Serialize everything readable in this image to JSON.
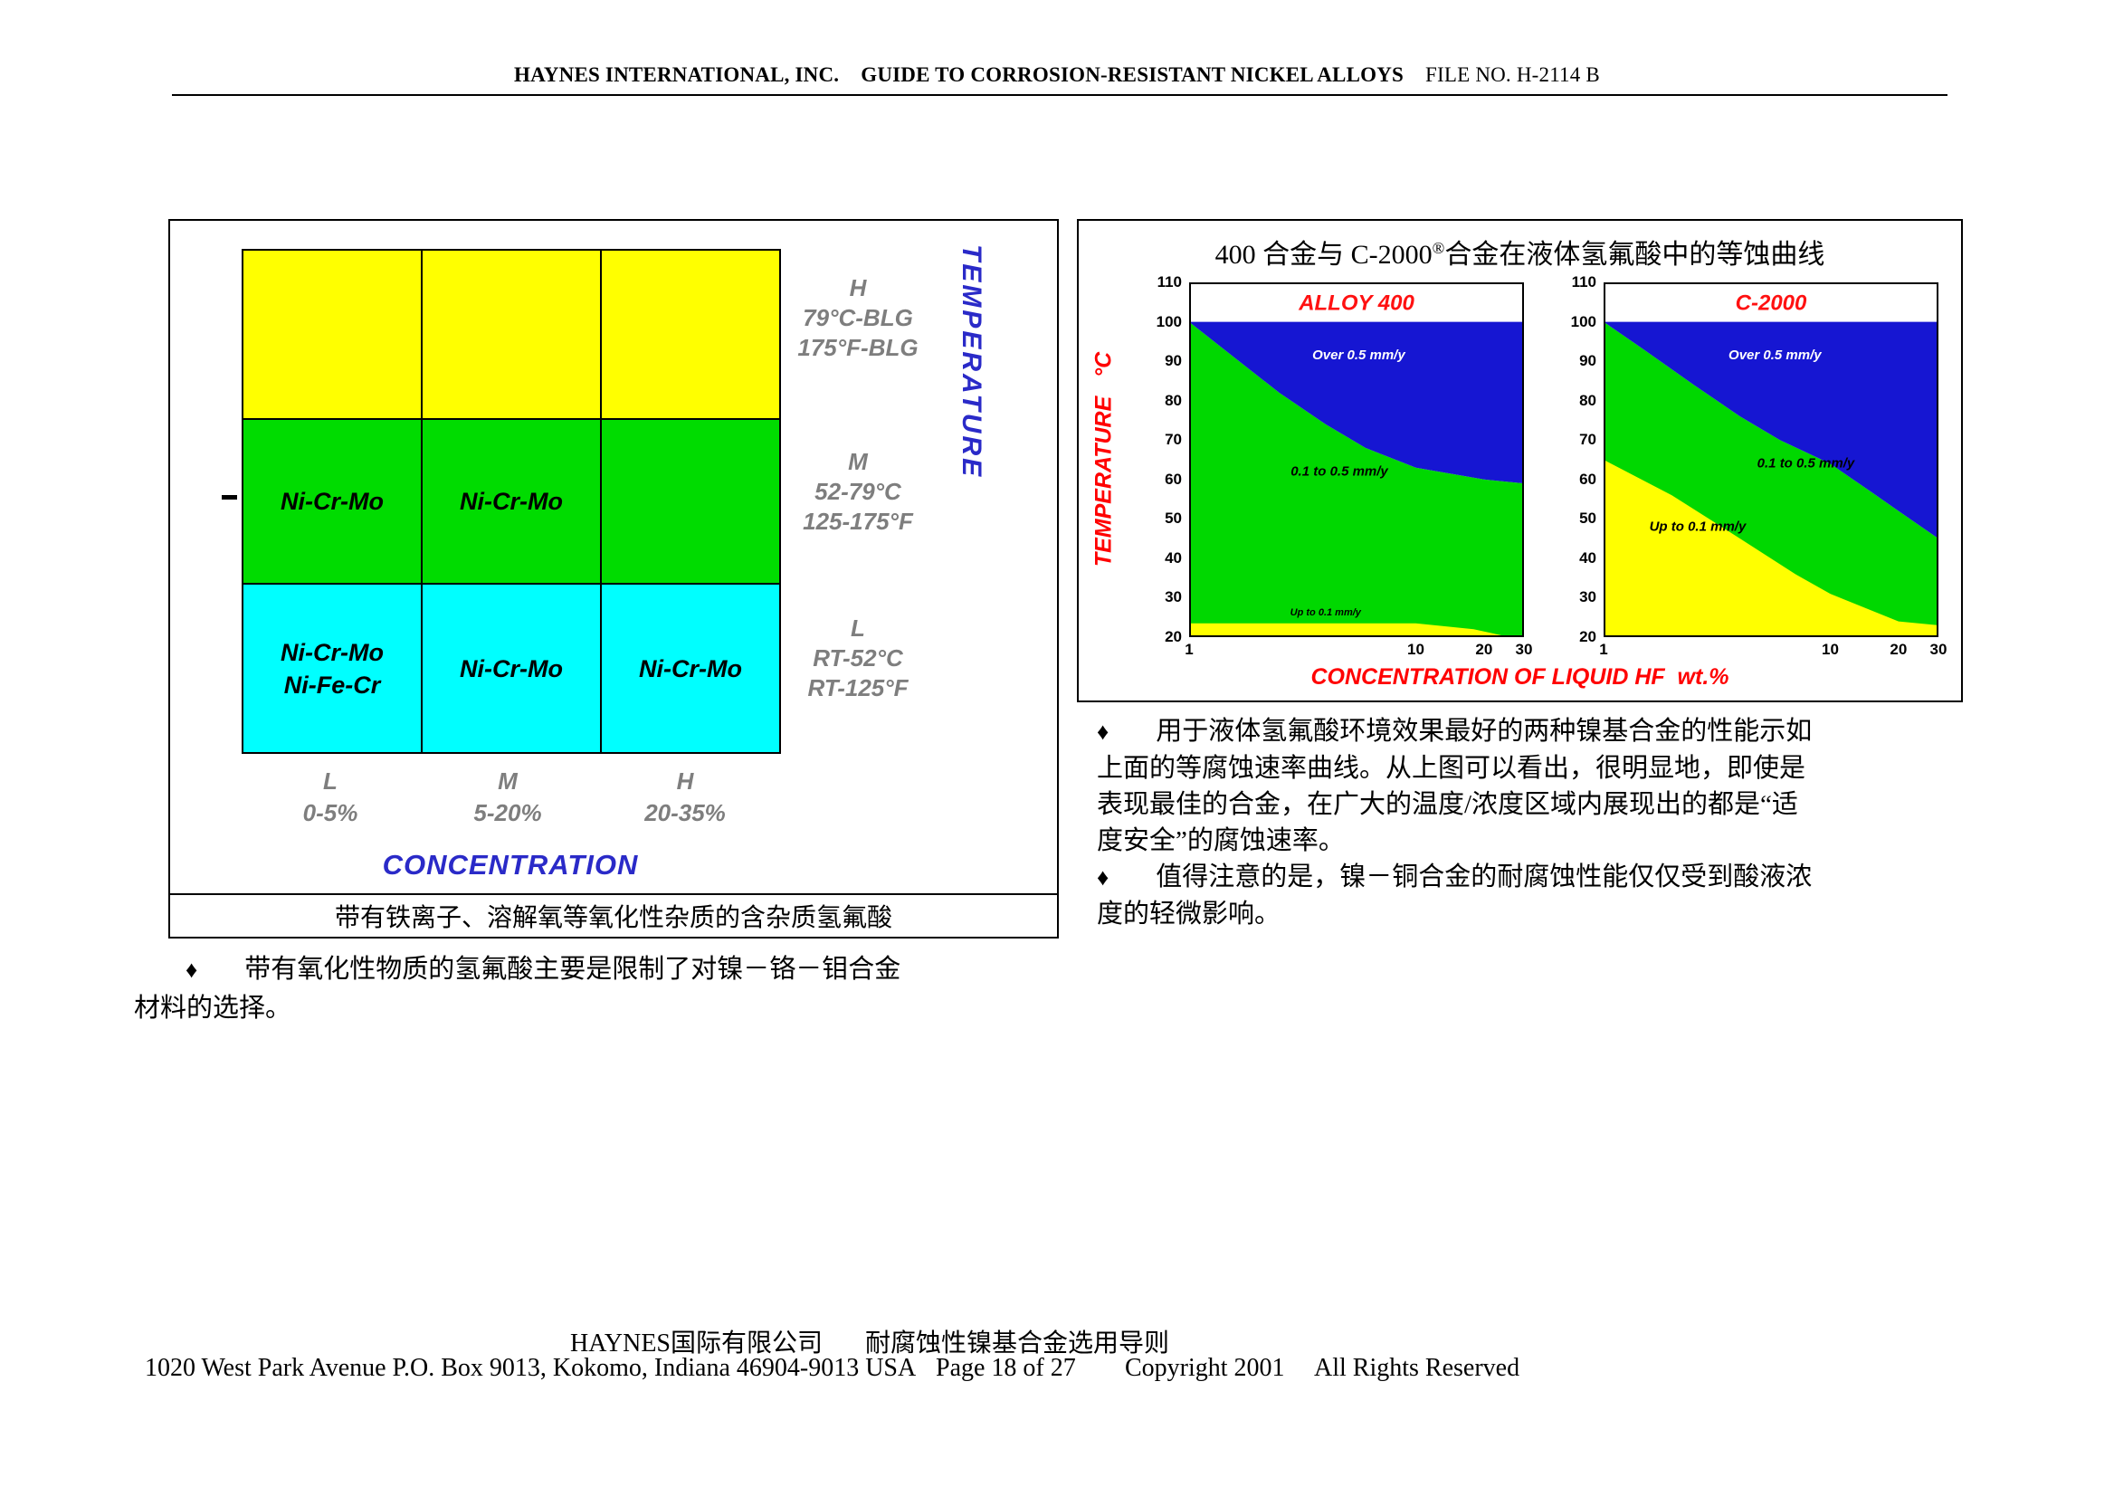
{
  "page": {
    "bullet_char": "♦"
  },
  "header": {
    "company": "HAYNES INTERNATIONAL, INC.",
    "guide": "GUIDE TO CORROSION-RESISTANT NICKEL ALLOYS",
    "file_no": "FILE NO. H-2114 B"
  },
  "left_figure": {
    "grid": {
      "r2c1": "Ni-Cr-Mo",
      "r2c2": "Ni-Cr-Mo",
      "r3c1a": "Ni-Cr-Mo",
      "r3c1b": "Ni-Fe-Cr",
      "r3c2": "Ni-Cr-Mo",
      "r3c3": "Ni-Cr-Mo"
    },
    "colors": {
      "high_row": "#ffff00",
      "medium_row": "#00dc00",
      "low_row": "#00ffff"
    },
    "temp_axis": {
      "label": "TEMPERATURE",
      "tiers": [
        {
          "code": "H",
          "line1": "79°C-BLG",
          "line2": "175°F-BLG"
        },
        {
          "code": "M",
          "line1": "52-79°C",
          "line2": "125-175°F"
        },
        {
          "code": "L",
          "line1": "RT-52°C",
          "line2": "RT-125°F"
        }
      ]
    },
    "conc_axis": {
      "label": "CONCENTRATION",
      "tiers": [
        {
          "code": "L",
          "range": "0-5%"
        },
        {
          "code": "M",
          "range": "5-20%"
        },
        {
          "code": "H",
          "range": "20-35%"
        }
      ]
    },
    "caption": "带有铁离子、溶解氧等氧化性杂质的含杂质氢氟酸"
  },
  "notes": {
    "left": {
      "lines": [
        "带有氧化性物质的氢氟酸主要是限制了对镍－铬－钼合金",
        "材料的选择。"
      ]
    },
    "right1": {
      "lines": [
        "用于液体氢氟酸环境效果最好的两种镍基合金的性能示如",
        "上面的等腐蚀速率曲线。从上图可以看出，很明显地，即使是",
        "表现最佳的合金，在广大的温度/浓度区域内展现出的都是“适",
        "度安全”的腐蚀速率。"
      ]
    },
    "right2": {
      "lines": [
        "值得注意的是，镍－铜合金的耐腐蚀性能仅仅受到酸液浓",
        "度的轻微影响。"
      ]
    }
  },
  "right_figure": {
    "title_prefix": "400 合金与 C-2000",
    "title_sup": "®",
    "title_suffix": "合金在液体氢氟酸中的等蚀曲线"
  },
  "chart_data": [
    {
      "type": "area",
      "title": "ALLOY 400",
      "title_color": "#ff1111",
      "title_size": 24,
      "title_y": 103,
      "xlabel": "CONCENTRATION OF LIQUID HF  wt.%",
      "ylabel": "TEMPERATURE   °C",
      "xscale": "log",
      "xlim": [
        1,
        30
      ],
      "ylim": [
        20,
        110
      ],
      "xticks": [
        1,
        10,
        20,
        30
      ],
      "yticks": [
        110,
        100,
        90,
        80,
        70,
        60,
        50,
        40,
        30,
        20
      ],
      "plateau_y": 100,
      "regions": [
        {
          "name": "blue",
          "label": "Over 0.5 mm/y",
          "color": "#1616d2",
          "label_color": "#ffffff",
          "label_x": 5.6,
          "label_y": 90.5,
          "label_size": 15
        },
        {
          "name": "green",
          "label": "0.1 to 0.5 mm/y",
          "color": "#00d800",
          "label_color": "#000000",
          "label_x": 4.6,
          "label_y": 61,
          "label_size": 15
        },
        {
          "name": "yellow",
          "label": "Up to 0.1 mm/y",
          "color": "#ffff00",
          "label_color": "#000000",
          "label_x": 4.0,
          "label_y": 25.5,
          "label_size": 11
        }
      ],
      "blue_green_boundary": {
        "x": [
          1,
          1.5,
          2.5,
          4,
          6,
          10,
          20,
          30
        ],
        "y": [
          100,
          92,
          82,
          74,
          68,
          63,
          60,
          59
        ]
      },
      "green_yellow_boundary": {
        "x": [
          1,
          10,
          18,
          26,
          30
        ],
        "y": [
          23.5,
          23.5,
          22,
          20,
          20
        ]
      }
    },
    {
      "type": "area",
      "title": "C-2000",
      "title_color": "#ff1111",
      "title_size": 24,
      "title_y": 103,
      "xlabel": "CONCENTRATION OF LIQUID HF  wt.%",
      "ylabel": "TEMPERATURE   °C",
      "xscale": "log",
      "xlim": [
        1,
        30
      ],
      "ylim": [
        20,
        110
      ],
      "xticks": [
        1,
        10,
        20,
        30
      ],
      "yticks": [
        110,
        100,
        90,
        80,
        70,
        60,
        50,
        40,
        30,
        20
      ],
      "plateau_y": 100,
      "regions": [
        {
          "name": "blue",
          "label": "Over 0.5 mm/y",
          "color": "#1616d2",
          "label_color": "#ffffff",
          "label_x": 5.7,
          "label_y": 90.5,
          "label_size": 15
        },
        {
          "name": "green",
          "label": "0.1 to 0.5 mm/y",
          "color": "#00d800",
          "label_color": "#000000",
          "label_x": 7.8,
          "label_y": 63,
          "label_size": 15
        },
        {
          "name": "yellow",
          "label": "Up to 0.1 mm/y",
          "color": "#ffff00",
          "label_color": "#000000",
          "label_x": 2.6,
          "label_y": 47,
          "label_size": 15
        }
      ],
      "blue_green_boundary": {
        "x": [
          1,
          1.5,
          2.5,
          4,
          6,
          10,
          15,
          20,
          30
        ],
        "y": [
          100,
          93,
          84,
          76,
          70,
          64,
          57,
          52,
          45
        ]
      },
      "green_yellow_boundary": {
        "x": [
          1,
          2,
          4,
          7,
          10,
          20,
          30
        ],
        "y": [
          65,
          56,
          45,
          36,
          31,
          24,
          23
        ]
      }
    }
  ],
  "footer": {
    "company_cn": "HAYNES国际有限公司",
    "product_cn": "耐腐蚀性镍基合金选用导则",
    "address": "1020 West Park Avenue P.O. Box 9013, Kokomo, Indiana 46904-9013 USA",
    "page": "Page 18 of 27",
    "copyright": "Copyright 2001",
    "rights": "All Rights Reserved"
  }
}
